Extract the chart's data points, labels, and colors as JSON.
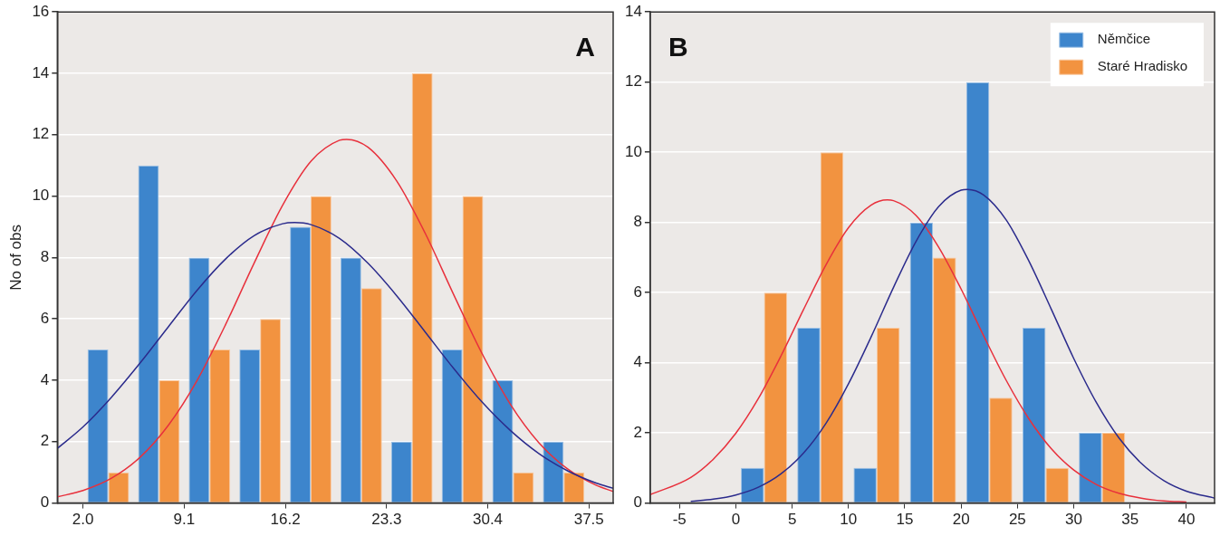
{
  "chart_data": [
    {
      "type": "histogram",
      "ylabel": "No of obs",
      "annotations": [
        "A"
      ],
      "bins": [
        2.0,
        5.55,
        9.1,
        12.65,
        16.2,
        19.75,
        23.3,
        26.85,
        30.4,
        33.95,
        37.5
      ],
      "series": [
        {
          "color": "#3d85cc",
          "values": [
            5,
            11,
            8,
            5,
            9,
            8,
            2,
            5,
            4,
            2
          ]
        },
        {
          "color": "#f29340",
          "values": [
            1,
            4,
            5,
            6,
            10,
            7,
            14,
            10,
            1,
            1
          ]
        },
        {
          "type": "line",
          "color": "#2b2b8c",
          "x": [
            0.2,
            2,
            4,
            6,
            8,
            10,
            12,
            14,
            16,
            16.85,
            18,
            20,
            22,
            24,
            26,
            28,
            30,
            32,
            34,
            36,
            38,
            39.2
          ],
          "values": [
            1.78,
            2.48,
            3.45,
            4.56,
            5.75,
            6.93,
            7.95,
            8.71,
            9.1,
            9.14,
            9.07,
            8.62,
            7.81,
            6.76,
            5.58,
            4.39,
            3.29,
            2.36,
            1.61,
            1.05,
            0.65,
            0.48
          ]
        },
        {
          "type": "line",
          "color": "#e8303c",
          "x": [
            0.2,
            2,
            4,
            6,
            8,
            10,
            12,
            14,
            16,
            18,
            20,
            20.5,
            22,
            24,
            26,
            28,
            30,
            32,
            34,
            36,
            38,
            39.2
          ],
          "values": [
            0.2,
            0.41,
            0.81,
            1.49,
            2.54,
            3.99,
            5.81,
            7.81,
            9.7,
            11.14,
            11.82,
            11.85,
            11.59,
            10.5,
            8.8,
            6.8,
            4.87,
            3.21,
            1.96,
            1.11,
            0.58,
            0.38
          ]
        }
      ],
      "xlim": [
        0.2,
        39.2
      ],
      "xticks": [
        {
          "value": 2,
          "label": "2.0"
        },
        9.1,
        16.2,
        23.3,
        30.4,
        37.5
      ],
      "ylim": [
        0,
        16
      ],
      "yticks": [
        0,
        2,
        4,
        6,
        8,
        10,
        12,
        14,
        16
      ],
      "grid": "y",
      "legend": false,
      "marker": "none",
      "line_style": "solid"
    },
    {
      "type": "histogram",
      "annotations": [
        "B"
      ],
      "bins": [
        0,
        5,
        10,
        15,
        20,
        25,
        30,
        35
      ],
      "series": [
        {
          "name": "Němčice",
          "color": "#3d85cc",
          "values": [
            1,
            5,
            1,
            8,
            12,
            5,
            2
          ]
        },
        {
          "name": "Staré Hradisko",
          "color": "#f29340",
          "values": [
            6,
            10,
            5,
            7,
            3,
            1,
            2
          ]
        },
        {
          "type": "line",
          "color": "#2b2b8c",
          "x": [
            -4,
            -2,
            0,
            2,
            4,
            6,
            8,
            10,
            12,
            14,
            16,
            18,
            20,
            20.56,
            22,
            24,
            26,
            28,
            30,
            32,
            34,
            36,
            38,
            40,
            42.5
          ],
          "values": [
            0.05,
            0.11,
            0.23,
            0.45,
            0.83,
            1.42,
            2.27,
            3.4,
            4.73,
            6.15,
            7.46,
            8.45,
            8.92,
            8.94,
            8.78,
            8.07,
            6.91,
            5.53,
            4.12,
            2.87,
            1.86,
            1.13,
            0.64,
            0.34,
            0.14
          ]
        },
        {
          "type": "line",
          "color": "#e8303c",
          "x": [
            -7.6,
            -4,
            -2,
            0,
            2,
            4,
            6,
            8,
            10,
            12,
            13.45,
            14,
            16,
            18,
            20,
            22,
            24,
            26,
            28,
            30,
            32,
            34,
            36,
            38,
            40
          ],
          "values": [
            0.24,
            0.73,
            1.25,
            1.99,
            2.98,
            4.19,
            5.51,
            6.79,
            7.85,
            8.49,
            8.64,
            8.62,
            8.2,
            7.3,
            6.1,
            4.77,
            3.5,
            2.41,
            1.55,
            0.94,
            0.53,
            0.28,
            0.14,
            0.06,
            0.03
          ]
        }
      ],
      "xlim": [
        -7.6,
        42.5
      ],
      "xticks": [
        -5,
        0,
        5,
        10,
        15,
        20,
        25,
        30,
        35,
        40
      ],
      "ylim": [
        0,
        14
      ],
      "yticks": [
        0,
        2,
        4,
        6,
        8,
        10,
        12,
        14
      ],
      "grid": "y",
      "legend": "top right",
      "marker": "none",
      "line_style": "solid"
    }
  ]
}
